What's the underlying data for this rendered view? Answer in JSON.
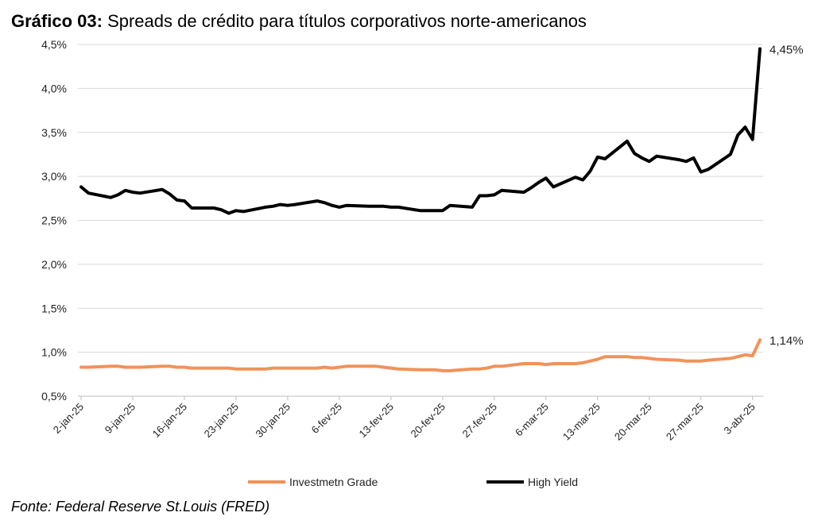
{
  "header": {
    "title_prefix": "Gráfico 03:",
    "title_text": "Spreads de crédito para títulos corporativos norte-americanos"
  },
  "source_text": "Fonte: Federal Reserve St.Louis (FRED)",
  "colors": {
    "ig": "#F0935A",
    "hy": "#000000",
    "grid": "#D9D9D9",
    "axis": "#BFBFBF"
  },
  "chart_data": {
    "type": "line",
    "x_tick_labels": [
      "2-jan-25",
      "9-jan-25",
      "16-jan-25",
      "23-jan-25",
      "30-jan-25",
      "6-fev-25",
      "13-fev-25",
      "20-fev-25",
      "27-fev-25",
      "6-mar-25",
      "13-mar-25",
      "20-mar-25",
      "27-mar-25",
      "3-abr-25"
    ],
    "y_tick_labels": [
      "0,5%",
      "1,0%",
      "1,5%",
      "2,0%",
      "2,5%",
      "3,0%",
      "3,5%",
      "4,0%",
      "4,5%"
    ],
    "ylim": [
      0.5,
      4.5
    ],
    "grid": true,
    "legend_position": "bottom",
    "x": [
      "2025-01-02",
      "2025-01-03",
      "2025-01-06",
      "2025-01-07",
      "2025-01-08",
      "2025-01-09",
      "2025-01-10",
      "2025-01-13",
      "2025-01-14",
      "2025-01-15",
      "2025-01-16",
      "2025-01-17",
      "2025-01-20",
      "2025-01-21",
      "2025-01-22",
      "2025-01-23",
      "2025-01-24",
      "2025-01-27",
      "2025-01-28",
      "2025-01-29",
      "2025-01-30",
      "2025-01-31",
      "2025-02-03",
      "2025-02-04",
      "2025-02-05",
      "2025-02-06",
      "2025-02-07",
      "2025-02-10",
      "2025-02-11",
      "2025-02-12",
      "2025-02-13",
      "2025-02-14",
      "2025-02-17",
      "2025-02-18",
      "2025-02-19",
      "2025-02-20",
      "2025-02-21",
      "2025-02-24",
      "2025-02-25",
      "2025-02-26",
      "2025-02-27",
      "2025-02-28",
      "2025-03-03",
      "2025-03-04",
      "2025-03-05",
      "2025-03-06",
      "2025-03-07",
      "2025-03-10",
      "2025-03-11",
      "2025-03-12",
      "2025-03-13",
      "2025-03-14",
      "2025-03-17",
      "2025-03-18",
      "2025-03-19",
      "2025-03-20",
      "2025-03-21",
      "2025-03-24",
      "2025-03-25",
      "2025-03-26",
      "2025-03-27",
      "2025-03-28",
      "2025-03-31",
      "2025-04-01",
      "2025-04-02",
      "2025-04-03",
      "2025-04-04"
    ],
    "series": [
      {
        "name": "Investmetn Grade",
        "end_label": "1,14%",
        "values": [
          0.83,
          0.83,
          0.84,
          0.84,
          0.83,
          0.83,
          0.83,
          0.84,
          0.84,
          0.83,
          0.83,
          0.82,
          0.82,
          0.82,
          0.82,
          0.81,
          0.81,
          0.81,
          0.82,
          0.82,
          0.82,
          0.82,
          0.82,
          0.83,
          0.82,
          0.83,
          0.84,
          0.84,
          0.84,
          0.83,
          0.82,
          0.81,
          0.8,
          0.8,
          0.8,
          0.79,
          0.79,
          0.81,
          0.81,
          0.82,
          0.84,
          0.84,
          0.87,
          0.87,
          0.87,
          0.86,
          0.87,
          0.87,
          0.88,
          0.9,
          0.92,
          0.95,
          0.95,
          0.94,
          0.94,
          0.93,
          0.92,
          0.91,
          0.9,
          0.9,
          0.9,
          0.91,
          0.93,
          0.95,
          0.97,
          0.96,
          1.14
        ]
      },
      {
        "name": "High Yield",
        "end_label": "4,45%",
        "values": [
          2.88,
          2.81,
          2.76,
          2.79,
          2.84,
          2.82,
          2.81,
          2.85,
          2.8,
          2.73,
          2.72,
          2.64,
          2.64,
          2.62,
          2.58,
          2.61,
          2.6,
          2.65,
          2.66,
          2.68,
          2.67,
          2.68,
          2.72,
          2.7,
          2.67,
          2.65,
          2.67,
          2.66,
          2.66,
          2.66,
          2.65,
          2.65,
          2.61,
          2.61,
          2.61,
          2.61,
          2.67,
          2.65,
          2.78,
          2.78,
          2.79,
          2.84,
          2.82,
          2.87,
          2.93,
          2.98,
          2.88,
          2.99,
          2.96,
          3.06,
          3.22,
          3.2,
          3.4,
          3.26,
          3.21,
          3.17,
          3.23,
          3.19,
          3.17,
          3.21,
          3.05,
          3.08,
          3.25,
          3.47,
          3.56,
          3.42,
          4.45
        ]
      }
    ]
  }
}
